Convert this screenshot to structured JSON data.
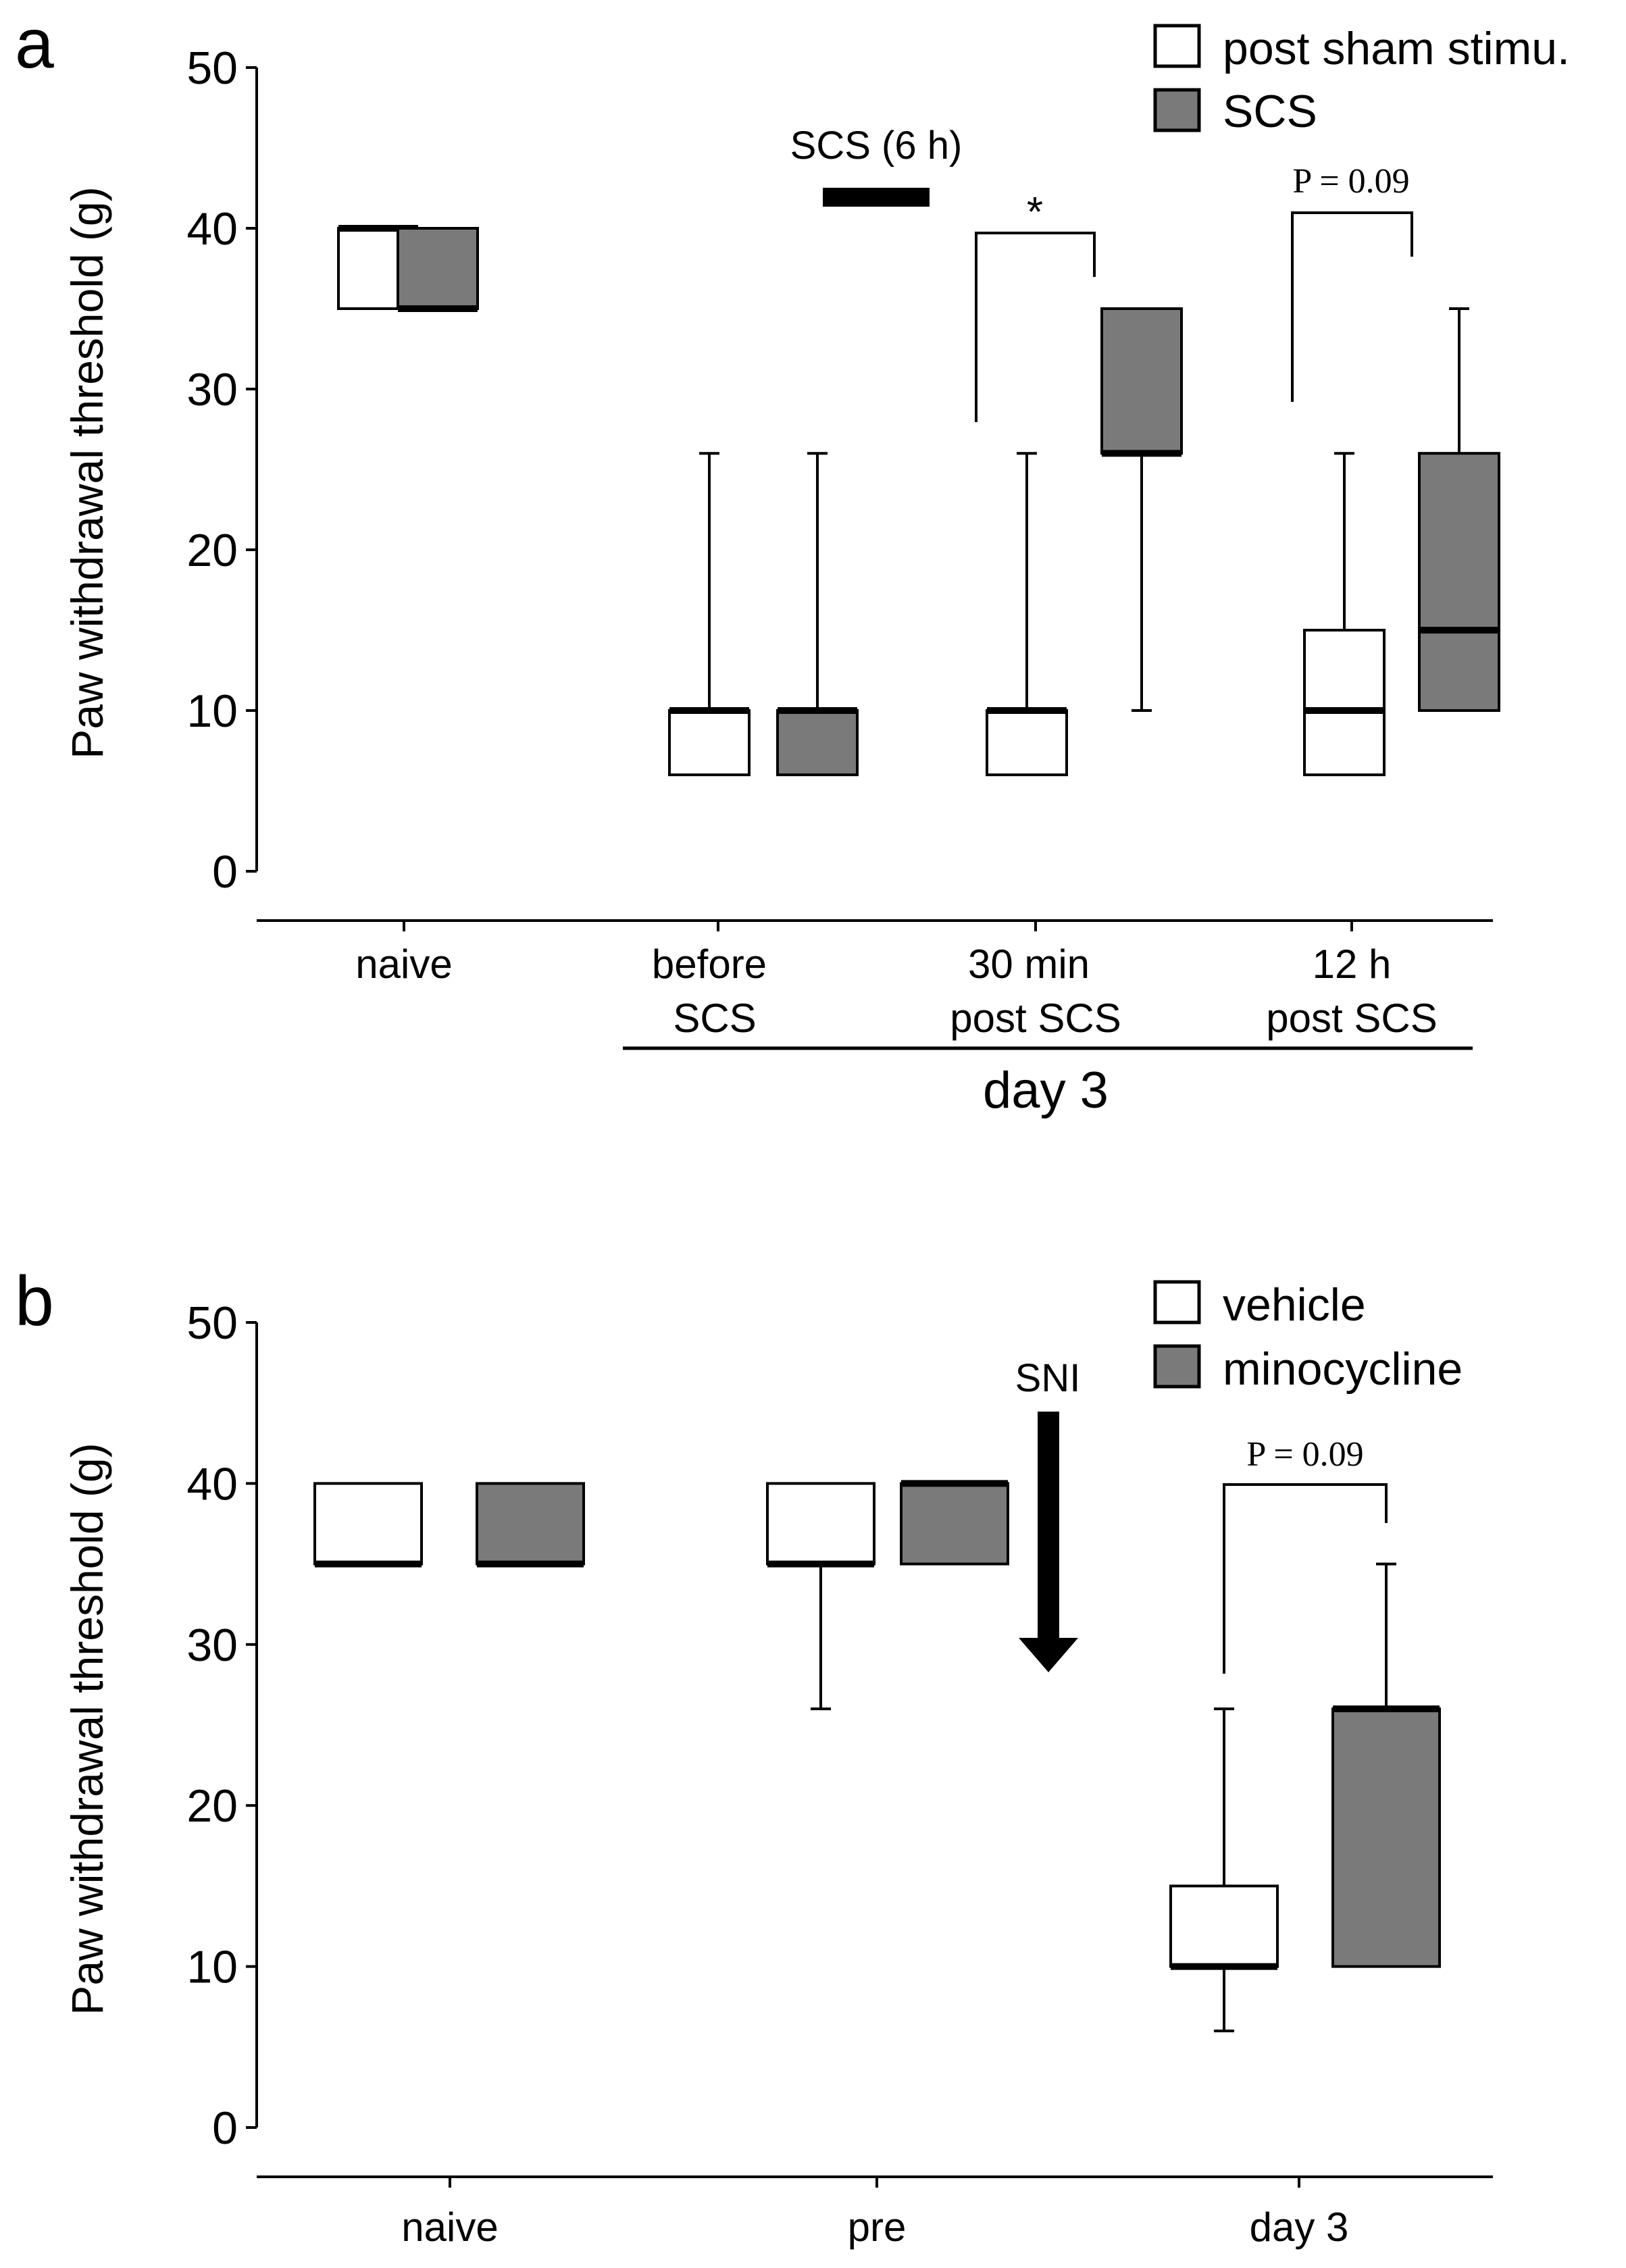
{
  "colors": {
    "open": "#ffffff",
    "filled": "#7a7a7a",
    "ink": "#000000"
  },
  "chart_data": [
    {
      "panel": "a",
      "type": "box",
      "ylabel": "Paw withdrawal threshold (g)",
      "ylim": [
        0,
        50
      ],
      "yticks": [
        "0",
        "10",
        "20",
        "30",
        "40",
        "50"
      ],
      "categories": [
        {
          "line1": "naive",
          "line2": ""
        },
        {
          "line1": "before",
          "line2": "SCS"
        },
        {
          "line1": "30 min",
          "line2": "post SCS"
        },
        {
          "line1": "12 h",
          "line2": "post SCS"
        }
      ],
      "group_label": "day 3",
      "legend": [
        {
          "label": "post sham stimu.",
          "style": "open"
        },
        {
          "label": "SCS",
          "style": "filled"
        }
      ],
      "series": [
        {
          "name": "post sham stimu.",
          "style": "open",
          "boxes": [
            {
              "category": "naive",
              "whisker_low": 35,
              "q1": 35,
              "median": 40,
              "q3": 40,
              "whisker_high": 40
            },
            {
              "category": "before SCS",
              "whisker_low": 6,
              "q1": 6,
              "median": 10,
              "q3": 10,
              "whisker_high": 26
            },
            {
              "category": "30 min post SCS",
              "whisker_low": 6,
              "q1": 6,
              "median": 10,
              "q3": 10,
              "whisker_high": 26
            },
            {
              "category": "12 h post SCS",
              "whisker_low": 6,
              "q1": 6,
              "median": 10,
              "q3": 15,
              "whisker_high": 26
            }
          ]
        },
        {
          "name": "SCS",
          "style": "filled",
          "boxes": [
            {
              "category": "naive",
              "whisker_low": 35,
              "q1": 35,
              "median": 35,
              "q3": 40,
              "whisker_high": 40
            },
            {
              "category": "before SCS",
              "whisker_low": 6,
              "q1": 6,
              "median": 10,
              "q3": 10,
              "whisker_high": 26
            },
            {
              "category": "30 min post SCS",
              "whisker_low": 10,
              "q1": 26,
              "median": 26,
              "q3": 35,
              "whisker_high": 35
            },
            {
              "category": "12 h post SCS",
              "whisker_low": 10,
              "q1": 10,
              "median": 15,
              "q3": 26,
              "whisker_high": 35
            }
          ]
        }
      ],
      "annotations": {
        "scs_period": "SCS (6 h)",
        "significance_30min": "*",
        "p_value_12h": "P = 0.09"
      }
    },
    {
      "panel": "b",
      "type": "box",
      "ylabel": "Paw withdrawal threshold (g)",
      "ylim": [
        0,
        50
      ],
      "yticks": [
        "0",
        "10",
        "20",
        "30",
        "40",
        "50"
      ],
      "categories": [
        {
          "line1": "naive",
          "line2": ""
        },
        {
          "line1": "pre",
          "line2": ""
        },
        {
          "line1": "day 3",
          "line2": ""
        }
      ],
      "legend": [
        {
          "label": "vehicle",
          "style": "open"
        },
        {
          "label": "minocycline",
          "style": "filled"
        }
      ],
      "series": [
        {
          "name": "vehicle",
          "style": "open",
          "boxes": [
            {
              "category": "naive",
              "whisker_low": 35,
              "q1": 35,
              "median": 35,
              "q3": 40,
              "whisker_high": 40
            },
            {
              "category": "pre",
              "whisker_low": 26,
              "q1": 35,
              "median": 35,
              "q3": 40,
              "whisker_high": 40
            },
            {
              "category": "day 3",
              "whisker_low": 6,
              "q1": 10,
              "median": 10,
              "q3": 15,
              "whisker_high": 26
            }
          ]
        },
        {
          "name": "minocycline",
          "style": "filled",
          "boxes": [
            {
              "category": "naive",
              "whisker_low": 35,
              "q1": 35,
              "median": 35,
              "q3": 40,
              "whisker_high": 40
            },
            {
              "category": "pre",
              "whisker_low": 35,
              "q1": 35,
              "median": 40,
              "q3": 40,
              "whisker_high": 40
            },
            {
              "category": "day 3",
              "whisker_low": 10,
              "q1": 10,
              "median": 26,
              "q3": 26,
              "whisker_high": 35
            }
          ]
        }
      ],
      "annotations": {
        "sni_label": "SNI",
        "p_value_day3": "P = 0.09"
      }
    }
  ]
}
